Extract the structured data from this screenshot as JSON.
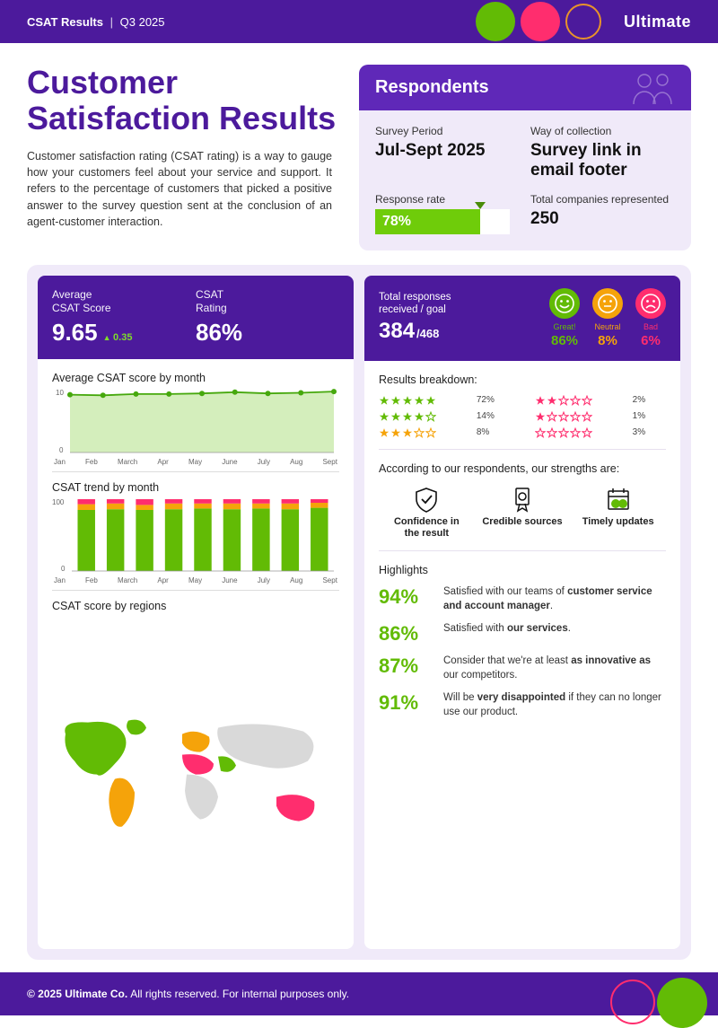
{
  "colors": {
    "purple": "#4c1a9c",
    "purple_light": "#f0eaf9",
    "green": "#62bb05",
    "green_bright": "#6fcc0a",
    "orange": "#f5a30a",
    "pink": "#ff2d6e",
    "grid": "#e6e0ef"
  },
  "header": {
    "title": "CSAT Results",
    "period": "Q3 2025",
    "brand": "Ultimate"
  },
  "title": "Customer Satisfaction Results",
  "intro": "Customer satisfaction rating (CSAT rating) is a way to gauge how your customers feel about your service and support. It refers to the percentage of customers that picked a positive answer to the survey question sent at the conclusion of an agent-customer interaction.",
  "respondents": {
    "heading": "Respondents",
    "period_label": "Survey Period",
    "period_value": "Jul-Sept 2025",
    "method_label": "Way of collection",
    "method_value": "Survey link in email footer",
    "rate_label": "Response rate",
    "rate_value": "78%",
    "rate_pct": 78,
    "companies_label": "Total companies represented",
    "companies_value": "250"
  },
  "left": {
    "avg_label": "Average\nCSAT Score",
    "avg_value": "9.65",
    "avg_delta": "0.35",
    "rating_label": "CSAT\nRating",
    "rating_value": "86%",
    "line_chart": {
      "title": "Average CSAT score by month",
      "months": [
        "Jan",
        "Feb",
        "March",
        "Apr",
        "May",
        "June",
        "July",
        "Aug",
        "Sept"
      ],
      "y_max": 10,
      "y_ticks": [
        0,
        10
      ],
      "values": [
        9.2,
        9.1,
        9.3,
        9.3,
        9.4,
        9.6,
        9.4,
        9.5,
        9.7
      ],
      "line_color": "#46a80d",
      "fill_color": "#d4eebc",
      "marker_color": "#46a80d"
    },
    "bar_chart": {
      "title": "CSAT trend by month",
      "months": [
        "Jan",
        "Feb",
        "March",
        "Apr",
        "May",
        "June",
        "July",
        "Aug",
        "Sept"
      ],
      "y_max": 100,
      "y_ticks": [
        0,
        100
      ],
      "stacks": [
        {
          "green": 85,
          "orange": 8,
          "pink": 7
        },
        {
          "green": 86,
          "orange": 8,
          "pink": 6
        },
        {
          "green": 85,
          "orange": 7,
          "pink": 8
        },
        {
          "green": 86,
          "orange": 8,
          "pink": 6
        },
        {
          "green": 87,
          "orange": 7,
          "pink": 6
        },
        {
          "green": 86,
          "orange": 8,
          "pink": 6
        },
        {
          "green": 87,
          "orange": 7,
          "pink": 6
        },
        {
          "green": 86,
          "orange": 8,
          "pink": 6
        },
        {
          "green": 88,
          "orange": 7,
          "pink": 5
        }
      ],
      "bar_width": 0.6,
      "colors": {
        "green": "#62bb05",
        "orange": "#f5a30a",
        "pink": "#ff2d6e"
      }
    },
    "map": {
      "title": "CSAT score by regions",
      "base_color": "#d9d9d9",
      "regions": [
        {
          "name": "north-america",
          "color": "#62bb05"
        },
        {
          "name": "south-america",
          "color": "#f5a30a"
        },
        {
          "name": "europe",
          "color": "#f5a30a"
        },
        {
          "name": "africa-north",
          "color": "#ff2d6e"
        },
        {
          "name": "africa-sub",
          "color": "#d9d9d9"
        },
        {
          "name": "middle-east",
          "color": "#62bb05"
        },
        {
          "name": "asia",
          "color": "#d9d9d9"
        },
        {
          "name": "oceania",
          "color": "#ff2d6e"
        }
      ]
    }
  },
  "right": {
    "responses_label": "Total responses\nreceived / goal",
    "responses_value": "384",
    "responses_goal": "/468",
    "sentiments": [
      {
        "label": "Great!",
        "pct": "86%",
        "color": "#62bb05",
        "face": "happy"
      },
      {
        "label": "Neutral",
        "pct": "8%",
        "color": "#f5a30a",
        "face": "neutral"
      },
      {
        "label": "Bad",
        "pct": "6%",
        "color": "#ff2d6e",
        "face": "sad"
      }
    ],
    "breakdown_label": "Results breakdown:",
    "breakdown": [
      {
        "stars": 5,
        "filled": 5,
        "color": "#62bb05",
        "pct": "72%"
      },
      {
        "stars": 5,
        "filled": 2,
        "color": "#ff2d6e",
        "pct": "2%"
      },
      {
        "stars": 5,
        "filled": 4,
        "color": "#62bb05",
        "pct": "14%"
      },
      {
        "stars": 5,
        "filled": 1,
        "color": "#ff2d6e",
        "pct": "1%"
      },
      {
        "stars": 5,
        "filled": 3,
        "color": "#f5a30a",
        "pct": "8%"
      },
      {
        "stars": 5,
        "filled": 0,
        "color": "#ff2d6e",
        "pct": "3%"
      }
    ],
    "strengths_label": "According to our respondents, our strengths are:",
    "strengths": [
      {
        "label": "Confidence in the result",
        "icon": "shield"
      },
      {
        "label": "Credible sources",
        "icon": "award"
      },
      {
        "label": "Timely updates",
        "icon": "calendar"
      }
    ],
    "highlights_label": "Highlights",
    "highlights": [
      {
        "pct": "94%",
        "text": "Satisfied with our teams of <b>customer service and account manager</b>."
      },
      {
        "pct": "86%",
        "text": "Satisfied with <b>our services</b>."
      },
      {
        "pct": "87%",
        "text": "Consider that we're at least <b>as innovative as</b> our competitors."
      },
      {
        "pct": "91%",
        "text": "Will be <b>very disappointed</b> if they can no longer use our product."
      }
    ]
  },
  "footer": {
    "copyright": "© 2025 Ultimate Co.",
    "rest": "All rights reserved. For internal purposes only."
  }
}
